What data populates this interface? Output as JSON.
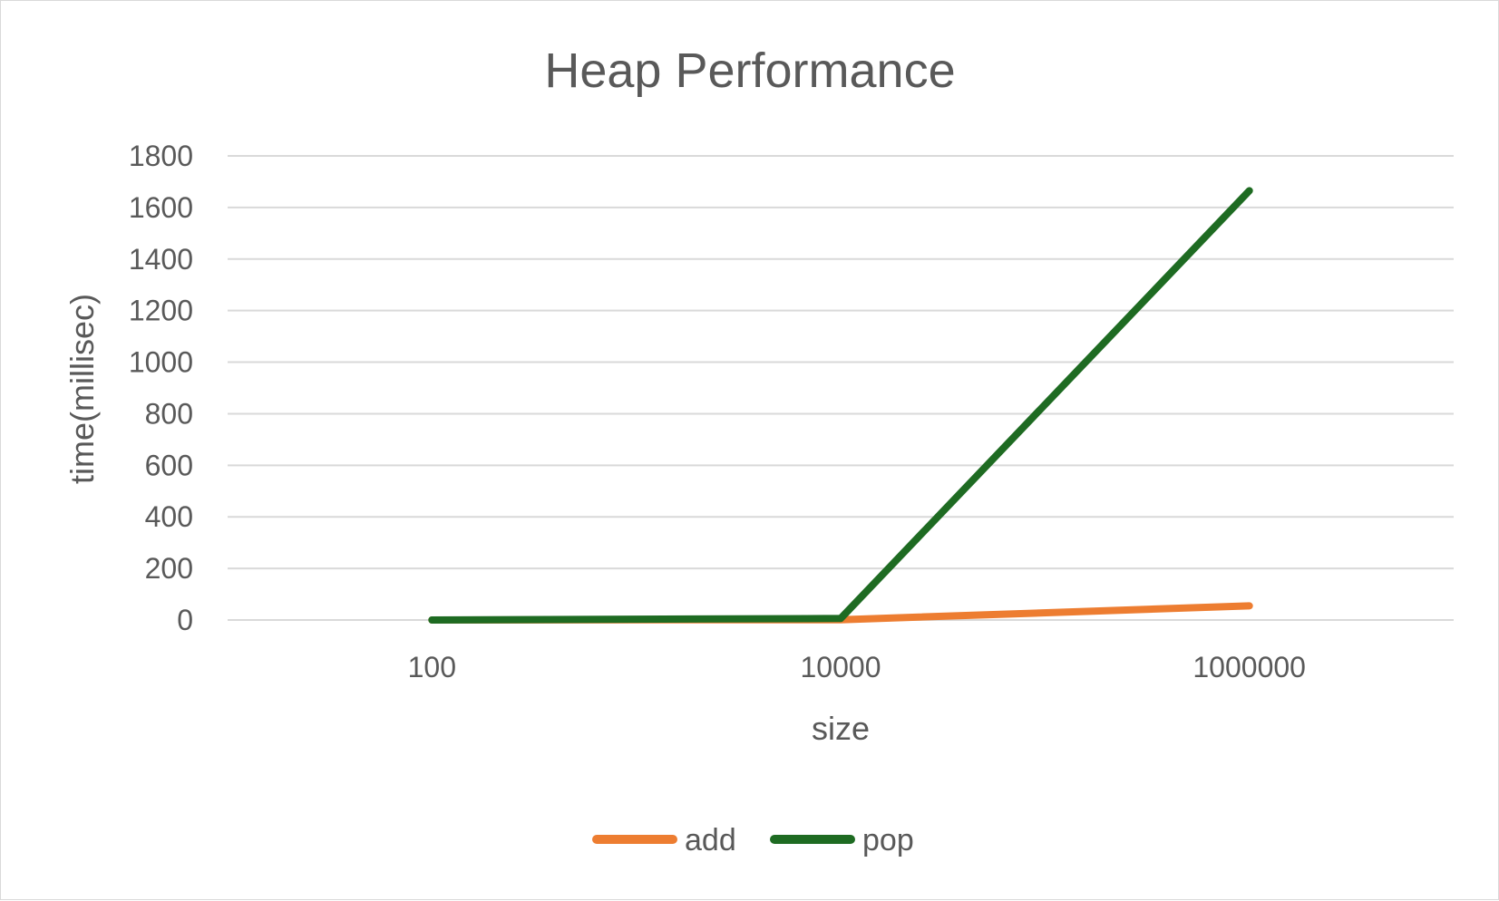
{
  "chart_data": {
    "type": "line",
    "title": "Heap Performance",
    "xlabel": "size",
    "ylabel": "time(millisec)",
    "categories": [
      "100",
      "10000",
      "1000000"
    ],
    "ylim": [
      0,
      1800
    ],
    "yticks": [
      0,
      200,
      400,
      600,
      800,
      1000,
      1200,
      1400,
      1600,
      1800
    ],
    "grid": true,
    "legend_position": "bottom",
    "series": [
      {
        "name": "add",
        "color": "#ed7d31",
        "values": [
          0,
          1,
          55
        ]
      },
      {
        "name": "pop",
        "color": "#1e6b22",
        "values": [
          0,
          6,
          1665
        ]
      }
    ]
  }
}
